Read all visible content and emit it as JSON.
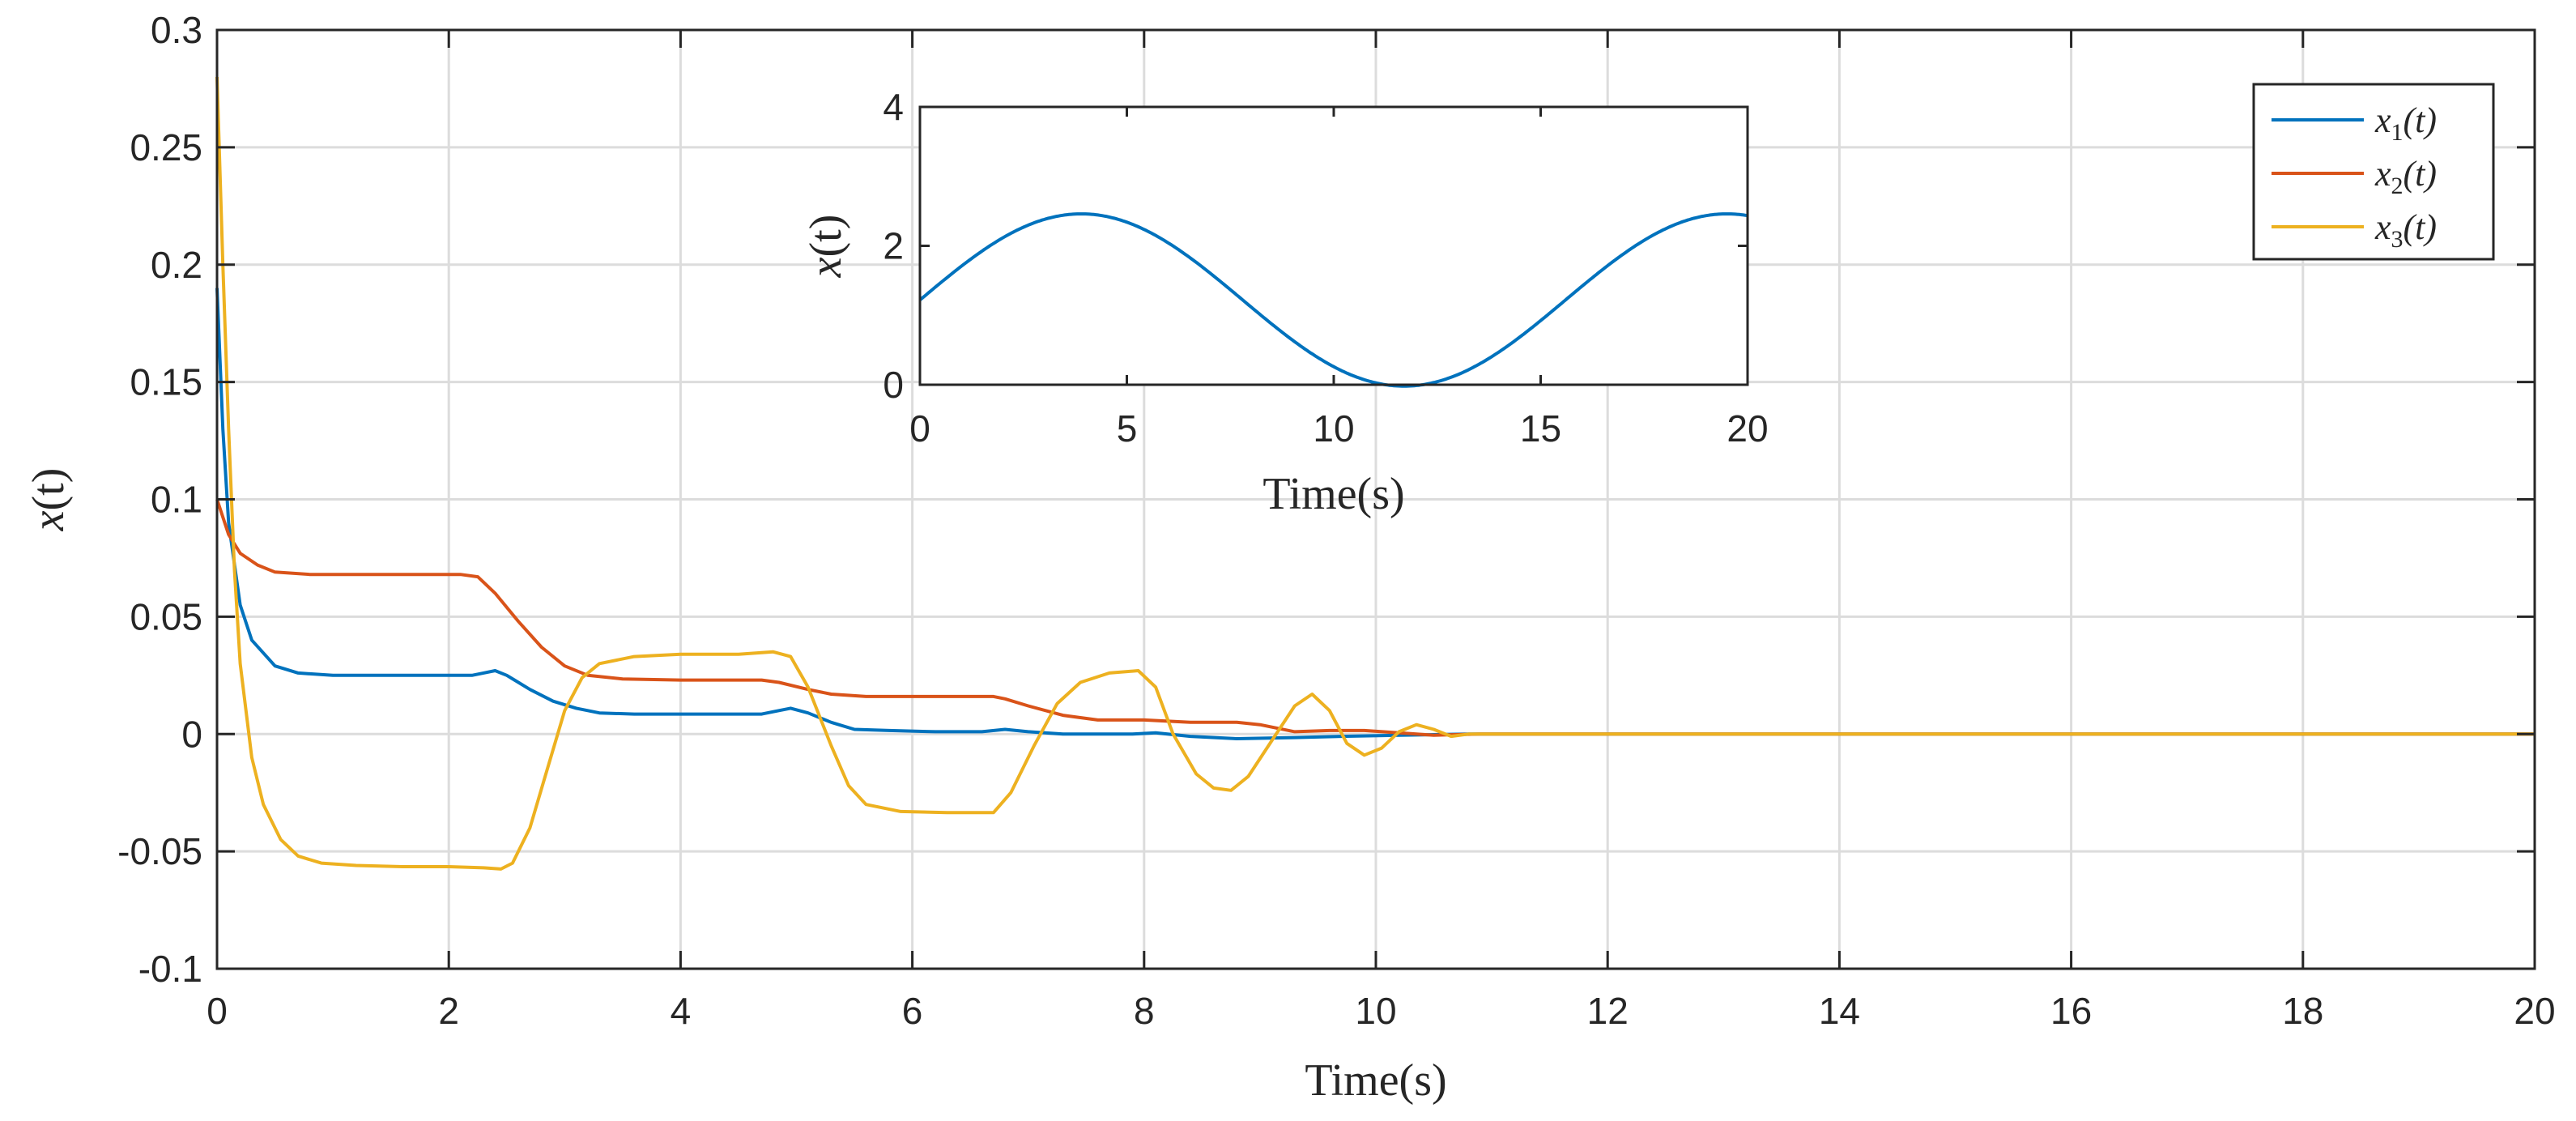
{
  "chart_data": [
    {
      "id": "main",
      "type": "line",
      "title": "",
      "xlabel": "Time(s)",
      "ylabel_var": "x",
      "ylabel_arg": "(t)",
      "xlim": [
        0,
        20
      ],
      "ylim": [
        -0.1,
        0.3
      ],
      "xticks": [
        0,
        2,
        4,
        6,
        8,
        10,
        12,
        14,
        16,
        18,
        20
      ],
      "xtick_labels": [
        "0",
        "2",
        "4",
        "6",
        "8",
        "10",
        "12",
        "14",
        "16",
        "18",
        "20"
      ],
      "yticks": [
        -0.1,
        -0.05,
        0,
        0.05,
        0.1,
        0.15,
        0.2,
        0.25,
        0.3
      ],
      "ytick_labels": [
        "-0.1",
        "-0.05",
        "0",
        "0.05",
        "0.1",
        "0.15",
        "0.2",
        "0.25",
        "0.3"
      ],
      "grid": true,
      "legend_position": "top-right",
      "series": [
        {
          "name": "x1(t)",
          "legend_var": "x",
          "legend_sub": "1",
          "legend_arg": "(t)",
          "color": "#0072BD",
          "points": [
            [
              0,
              0.19
            ],
            [
              0.05,
              0.13
            ],
            [
              0.1,
              0.09
            ],
            [
              0.2,
              0.055
            ],
            [
              0.3,
              0.04
            ],
            [
              0.5,
              0.029
            ],
            [
              0.7,
              0.026
            ],
            [
              1,
              0.025
            ],
            [
              1.5,
              0.025
            ],
            [
              2.2,
              0.025
            ],
            [
              2.3,
              0.026
            ],
            [
              2.4,
              0.027
            ],
            [
              2.5,
              0.025
            ],
            [
              2.7,
              0.019
            ],
            [
              2.9,
              0.014
            ],
            [
              3.1,
              0.011
            ],
            [
              3.3,
              0.009
            ],
            [
              3.6,
              0.0085
            ],
            [
              4,
              0.0085
            ],
            [
              4.4,
              0.0085
            ],
            [
              4.7,
              0.0085
            ],
            [
              4.8,
              0.0095
            ],
            [
              4.95,
              0.011
            ],
            [
              5.1,
              0.009
            ],
            [
              5.3,
              0.005
            ],
            [
              5.5,
              0.002
            ],
            [
              5.8,
              0.0015
            ],
            [
              6.2,
              0.001
            ],
            [
              6.6,
              0.001
            ],
            [
              6.8,
              0.002
            ],
            [
              7,
              0.001
            ],
            [
              7.3,
              0
            ],
            [
              7.6,
              0
            ],
            [
              7.9,
              0
            ],
            [
              8.1,
              0.0005
            ],
            [
              8.4,
              -0.001
            ],
            [
              8.8,
              -0.002
            ],
            [
              9.3,
              -0.0015
            ],
            [
              9.7,
              -0.001
            ],
            [
              10.2,
              -0.0005
            ],
            [
              10.8,
              0
            ],
            [
              11.5,
              0
            ],
            [
              12,
              0
            ],
            [
              14,
              0
            ],
            [
              16,
              0
            ],
            [
              18,
              0
            ],
            [
              20,
              0
            ]
          ]
        },
        {
          "name": "x2(t)",
          "legend_var": "x",
          "legend_sub": "2",
          "legend_arg": "(t)",
          "color": "#D95319",
          "points": [
            [
              0,
              0.1
            ],
            [
              0.1,
              0.085
            ],
            [
              0.2,
              0.077
            ],
            [
              0.35,
              0.072
            ],
            [
              0.5,
              0.069
            ],
            [
              0.8,
              0.068
            ],
            [
              1.5,
              0.068
            ],
            [
              2.1,
              0.068
            ],
            [
              2.25,
              0.067
            ],
            [
              2.4,
              0.06
            ],
            [
              2.6,
              0.048
            ],
            [
              2.8,
              0.037
            ],
            [
              3,
              0.029
            ],
            [
              3.2,
              0.025
            ],
            [
              3.5,
              0.0235
            ],
            [
              4,
              0.023
            ],
            [
              4.5,
              0.023
            ],
            [
              4.7,
              0.023
            ],
            [
              4.85,
              0.022
            ],
            [
              5.1,
              0.019
            ],
            [
              5.3,
              0.017
            ],
            [
              5.6,
              0.016
            ],
            [
              6,
              0.016
            ],
            [
              6.5,
              0.016
            ],
            [
              6.7,
              0.016
            ],
            [
              6.8,
              0.015
            ],
            [
              7.0,
              0.012
            ],
            [
              7.3,
              0.008
            ],
            [
              7.6,
              0.006
            ],
            [
              8,
              0.006
            ],
            [
              8.4,
              0.005
            ],
            [
              8.8,
              0.005
            ],
            [
              9,
              0.004
            ],
            [
              9.3,
              0.001
            ],
            [
              9.6,
              0.0015
            ],
            [
              9.9,
              0.0015
            ],
            [
              10.2,
              0.0005
            ],
            [
              10.5,
              -0.0005
            ],
            [
              10.9,
              0
            ],
            [
              11.5,
              0
            ],
            [
              12,
              0
            ],
            [
              14,
              0
            ],
            [
              16,
              0
            ],
            [
              18,
              0
            ],
            [
              20,
              0
            ]
          ]
        },
        {
          "name": "x3(t)",
          "legend_var": "x",
          "legend_sub": "3",
          "legend_arg": "(t)",
          "color": "#EDB120",
          "points": [
            [
              0,
              0.28
            ],
            [
              0.05,
              0.2
            ],
            [
              0.1,
              0.13
            ],
            [
              0.15,
              0.07
            ],
            [
              0.2,
              0.03
            ],
            [
              0.3,
              -0.01
            ],
            [
              0.4,
              -0.03
            ],
            [
              0.55,
              -0.045
            ],
            [
              0.7,
              -0.052
            ],
            [
              0.9,
              -0.055
            ],
            [
              1.2,
              -0.056
            ],
            [
              1.6,
              -0.0565
            ],
            [
              2,
              -0.0565
            ],
            [
              2.3,
              -0.057
            ],
            [
              2.45,
              -0.0575
            ],
            [
              2.55,
              -0.055
            ],
            [
              2.7,
              -0.04
            ],
            [
              2.85,
              -0.015
            ],
            [
              3,
              0.01
            ],
            [
              3.15,
              0.024
            ],
            [
              3.3,
              0.03
            ],
            [
              3.6,
              0.033
            ],
            [
              4,
              0.034
            ],
            [
              4.5,
              0.034
            ],
            [
              4.8,
              0.035
            ],
            [
              4.95,
              0.033
            ],
            [
              5.1,
              0.02
            ],
            [
              5.3,
              -0.005
            ],
            [
              5.45,
              -0.022
            ],
            [
              5.6,
              -0.03
            ],
            [
              5.9,
              -0.033
            ],
            [
              6.3,
              -0.0335
            ],
            [
              6.7,
              -0.0335
            ],
            [
              6.85,
              -0.025
            ],
            [
              7.05,
              -0.005
            ],
            [
              7.25,
              0.013
            ],
            [
              7.45,
              0.022
            ],
            [
              7.7,
              0.026
            ],
            [
              7.95,
              0.027
            ],
            [
              8.1,
              0.02
            ],
            [
              8.25,
              0
            ],
            [
              8.45,
              -0.017
            ],
            [
              8.6,
              -0.023
            ],
            [
              8.75,
              -0.024
            ],
            [
              8.9,
              -0.018
            ],
            [
              9.1,
              -0.003
            ],
            [
              9.3,
              0.012
            ],
            [
              9.45,
              0.017
            ],
            [
              9.6,
              0.01
            ],
            [
              9.75,
              -0.004
            ],
            [
              9.9,
              -0.009
            ],
            [
              10.05,
              -0.006
            ],
            [
              10.2,
              0.001
            ],
            [
              10.35,
              0.004
            ],
            [
              10.5,
              0.002
            ],
            [
              10.65,
              -0.001
            ],
            [
              10.8,
              0
            ],
            [
              11.5,
              0
            ],
            [
              12,
              0
            ],
            [
              14,
              0
            ],
            [
              16,
              0
            ],
            [
              18,
              0
            ],
            [
              20,
              0
            ]
          ]
        }
      ]
    },
    {
      "id": "inset",
      "type": "line",
      "title": "",
      "xlabel": "Time(s)",
      "ylabel_var": "x",
      "ylabel_arg": "(t)",
      "xlim": [
        0,
        20
      ],
      "ylim": [
        0,
        4
      ],
      "xticks": [
        0,
        5,
        10,
        15,
        20
      ],
      "xtick_labels": [
        "0",
        "5",
        "10",
        "15",
        "20"
      ],
      "yticks": [
        0,
        2,
        4
      ],
      "ytick_labels": [
        "0",
        "2",
        "4"
      ],
      "grid": false,
      "series": [
        {
          "name": "x(t)",
          "color": "#0072BD",
          "function": "sinusoid",
          "mean": 1.22,
          "amplitude": 1.24,
          "period": 15.6,
          "peak_at": 3.9,
          "x_range": [
            0,
            20
          ]
        }
      ]
    }
  ]
}
